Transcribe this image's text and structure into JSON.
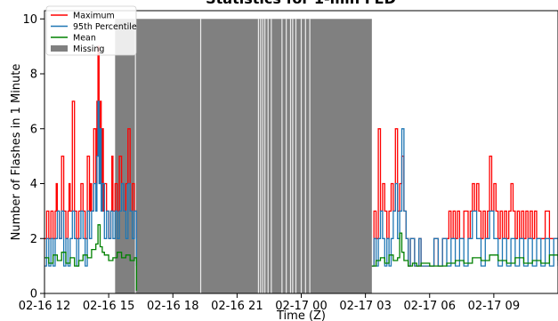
{
  "chart_data": {
    "type": "line",
    "title": "Statistics for 1-min FED",
    "xlabel": "Time (Z)",
    "ylabel": "Number of Flashes in 1 Minute",
    "ylim": [
      0,
      10.3
    ],
    "xlim_hours": [
      0,
      24
    ],
    "x_ticks": [
      {
        "hour": 0,
        "label": "02-16 12"
      },
      {
        "hour": 3,
        "label": "02-16 15"
      },
      {
        "hour": 6,
        "label": "02-16 18"
      },
      {
        "hour": 9,
        "label": "02-16 21"
      },
      {
        "hour": 12,
        "label": "02-17 00"
      },
      {
        "hour": 15,
        "label": "02-17 03"
      },
      {
        "hour": 18,
        "label": "02-17 06"
      },
      {
        "hour": 21,
        "label": "02-17 09"
      }
    ],
    "y_ticks": [
      0,
      2,
      4,
      6,
      8,
      10
    ],
    "legend_position": "top-left",
    "legend": [
      {
        "label": "Maximum",
        "color": "#ff0000",
        "kind": "line"
      },
      {
        "label": "95th Percentile",
        "color": "#1f77b4",
        "kind": "line"
      },
      {
        "label": "Mean",
        "color": "#008000",
        "kind": "line"
      },
      {
        "label": "Missing",
        "color": "#808080",
        "kind": "patch"
      }
    ],
    "missing_range_hours": [
      3.3,
      15.3
    ],
    "missing_value": 10,
    "missing_gap_hours": [
      4.25,
      7.3,
      10.0,
      10.1,
      10.2,
      10.3,
      10.45,
      10.6,
      11.1,
      11.3,
      11.5,
      11.6,
      11.75,
      12.0,
      12.2,
      12.4
    ],
    "series": [
      {
        "name": "Maximum",
        "color": "#ff0000",
        "points": [
          [
            0.0,
            2
          ],
          [
            0.1,
            3
          ],
          [
            0.2,
            2
          ],
          [
            0.3,
            3
          ],
          [
            0.4,
            2
          ],
          [
            0.5,
            3
          ],
          [
            0.55,
            4
          ],
          [
            0.6,
            3
          ],
          [
            0.7,
            2
          ],
          [
            0.8,
            5
          ],
          [
            0.9,
            3
          ],
          [
            1.0,
            2
          ],
          [
            1.1,
            3
          ],
          [
            1.15,
            4
          ],
          [
            1.2,
            3
          ],
          [
            1.3,
            7
          ],
          [
            1.4,
            3
          ],
          [
            1.5,
            2
          ],
          [
            1.6,
            3
          ],
          [
            1.7,
            4
          ],
          [
            1.8,
            3
          ],
          [
            1.9,
            2
          ],
          [
            2.0,
            5
          ],
          [
            2.1,
            3
          ],
          [
            2.15,
            4
          ],
          [
            2.2,
            3
          ],
          [
            2.3,
            6
          ],
          [
            2.4,
            4
          ],
          [
            2.45,
            7
          ],
          [
            2.5,
            9
          ],
          [
            2.55,
            5
          ],
          [
            2.6,
            7
          ],
          [
            2.65,
            4
          ],
          [
            2.7,
            6
          ],
          [
            2.75,
            3
          ],
          [
            2.8,
            4
          ],
          [
            2.9,
            3
          ],
          [
            3.0,
            2
          ],
          [
            3.1,
            3
          ],
          [
            3.15,
            5
          ],
          [
            3.2,
            3
          ],
          [
            3.3,
            4
          ],
          [
            3.4,
            3
          ],
          [
            3.5,
            5
          ],
          [
            3.6,
            4
          ],
          [
            3.7,
            3
          ],
          [
            3.8,
            4
          ],
          [
            3.9,
            6
          ],
          [
            4.0,
            3
          ],
          [
            4.1,
            4
          ],
          [
            4.2,
            3
          ],
          [
            4.3,
            2
          ],
          [
            15.3,
            1
          ],
          [
            15.4,
            3
          ],
          [
            15.5,
            2
          ],
          [
            15.6,
            6
          ],
          [
            15.7,
            3
          ],
          [
            15.8,
            4
          ],
          [
            15.9,
            3
          ],
          [
            16.0,
            2
          ],
          [
            16.1,
            3
          ],
          [
            16.2,
            4
          ],
          [
            16.3,
            3
          ],
          [
            16.4,
            6
          ],
          [
            16.5,
            3
          ],
          [
            16.6,
            4
          ],
          [
            16.7,
            5
          ],
          [
            16.8,
            3
          ],
          [
            16.9,
            2
          ],
          [
            17.0,
            1
          ],
          [
            17.1,
            2
          ],
          [
            17.3,
            1
          ],
          [
            17.5,
            2
          ],
          [
            17.6,
            1
          ],
          [
            18.0,
            1
          ],
          [
            18.2,
            2
          ],
          [
            18.4,
            1
          ],
          [
            18.6,
            2
          ],
          [
            18.8,
            2
          ],
          [
            18.9,
            3
          ],
          [
            19.0,
            2
          ],
          [
            19.1,
            3
          ],
          [
            19.2,
            2
          ],
          [
            19.3,
            3
          ],
          [
            19.4,
            2
          ],
          [
            19.6,
            3
          ],
          [
            19.8,
            2
          ],
          [
            19.9,
            3
          ],
          [
            20.0,
            4
          ],
          [
            20.1,
            3
          ],
          [
            20.2,
            4
          ],
          [
            20.3,
            3
          ],
          [
            20.4,
            2
          ],
          [
            20.5,
            3
          ],
          [
            20.6,
            2
          ],
          [
            20.7,
            3
          ],
          [
            20.8,
            5
          ],
          [
            20.9,
            3
          ],
          [
            21.0,
            4
          ],
          [
            21.1,
            3
          ],
          [
            21.2,
            2
          ],
          [
            21.3,
            3
          ],
          [
            21.4,
            2
          ],
          [
            21.5,
            3
          ],
          [
            21.6,
            2
          ],
          [
            21.7,
            3
          ],
          [
            21.8,
            4
          ],
          [
            21.9,
            3
          ],
          [
            22.0,
            2
          ],
          [
            22.1,
            3
          ],
          [
            22.2,
            2
          ],
          [
            22.3,
            3
          ],
          [
            22.4,
            2
          ],
          [
            22.5,
            3
          ],
          [
            22.6,
            2
          ],
          [
            22.7,
            3
          ],
          [
            22.8,
            2
          ],
          [
            22.9,
            3
          ],
          [
            23.0,
            2
          ],
          [
            23.2,
            2
          ],
          [
            23.4,
            3
          ],
          [
            23.6,
            2
          ],
          [
            23.8,
            2
          ],
          [
            24.0,
            2
          ]
        ]
      },
      {
        "name": "95th Percentile",
        "color": "#1f77b4",
        "points": [
          [
            0.0,
            1
          ],
          [
            0.1,
            2
          ],
          [
            0.2,
            1
          ],
          [
            0.3,
            2
          ],
          [
            0.4,
            1
          ],
          [
            0.5,
            2
          ],
          [
            0.6,
            3
          ],
          [
            0.7,
            2
          ],
          [
            0.8,
            3
          ],
          [
            0.9,
            1
          ],
          [
            1.0,
            2
          ],
          [
            1.1,
            1
          ],
          [
            1.2,
            2
          ],
          [
            1.3,
            3
          ],
          [
            1.4,
            2
          ],
          [
            1.5,
            1
          ],
          [
            1.6,
            2
          ],
          [
            1.7,
            3
          ],
          [
            1.8,
            2
          ],
          [
            1.9,
            1
          ],
          [
            2.0,
            3
          ],
          [
            2.1,
            2
          ],
          [
            2.2,
            3
          ],
          [
            2.3,
            4
          ],
          [
            2.4,
            3
          ],
          [
            2.45,
            5
          ],
          [
            2.5,
            7
          ],
          [
            2.55,
            4
          ],
          [
            2.6,
            6
          ],
          [
            2.65,
            3
          ],
          [
            2.7,
            4
          ],
          [
            2.8,
            2
          ],
          [
            2.9,
            3
          ],
          [
            3.0,
            2
          ],
          [
            3.1,
            3
          ],
          [
            3.2,
            2
          ],
          [
            3.3,
            3
          ],
          [
            3.4,
            2
          ],
          [
            3.5,
            3
          ],
          [
            3.6,
            4
          ],
          [
            3.7,
            3
          ],
          [
            3.8,
            2
          ],
          [
            3.9,
            4
          ],
          [
            4.0,
            3
          ],
          [
            4.1,
            2
          ],
          [
            4.2,
            3
          ],
          [
            4.3,
            1
          ],
          [
            15.3,
            1
          ],
          [
            15.4,
            2
          ],
          [
            15.5,
            1
          ],
          [
            15.6,
            2
          ],
          [
            15.7,
            3
          ],
          [
            15.8,
            2
          ],
          [
            15.9,
            1
          ],
          [
            16.0,
            2
          ],
          [
            16.1,
            1
          ],
          [
            16.2,
            2
          ],
          [
            16.3,
            3
          ],
          [
            16.4,
            4
          ],
          [
            16.5,
            2
          ],
          [
            16.6,
            3
          ],
          [
            16.7,
            6
          ],
          [
            16.8,
            3
          ],
          [
            16.9,
            2
          ],
          [
            17.0,
            1
          ],
          [
            17.1,
            2
          ],
          [
            17.3,
            1
          ],
          [
            17.5,
            2
          ],
          [
            17.6,
            1
          ],
          [
            18.0,
            1
          ],
          [
            18.2,
            2
          ],
          [
            18.4,
            1
          ],
          [
            18.6,
            2
          ],
          [
            18.8,
            1
          ],
          [
            19.0,
            2
          ],
          [
            19.2,
            1
          ],
          [
            19.4,
            2
          ],
          [
            19.6,
            1
          ],
          [
            19.8,
            2
          ],
          [
            20.0,
            3
          ],
          [
            20.2,
            2
          ],
          [
            20.4,
            1
          ],
          [
            20.6,
            2
          ],
          [
            20.8,
            3
          ],
          [
            21.0,
            2
          ],
          [
            21.2,
            1
          ],
          [
            21.4,
            2
          ],
          [
            21.6,
            1
          ],
          [
            21.8,
            2
          ],
          [
            22.0,
            1
          ],
          [
            22.2,
            2
          ],
          [
            22.4,
            1
          ],
          [
            22.6,
            2
          ],
          [
            22.8,
            1
          ],
          [
            23.0,
            2
          ],
          [
            23.2,
            1
          ],
          [
            23.4,
            2
          ],
          [
            23.6,
            1
          ],
          [
            23.8,
            2
          ],
          [
            24.0,
            1
          ]
        ]
      },
      {
        "name": "Mean",
        "color": "#008000",
        "points": [
          [
            0.0,
            1.3
          ],
          [
            0.2,
            1.1
          ],
          [
            0.4,
            1.4
          ],
          [
            0.6,
            1.2
          ],
          [
            0.8,
            1.5
          ],
          [
            1.0,
            1.1
          ],
          [
            1.2,
            1.3
          ],
          [
            1.4,
            1.0
          ],
          [
            1.6,
            1.2
          ],
          [
            1.8,
            1.4
          ],
          [
            2.0,
            1.3
          ],
          [
            2.2,
            1.6
          ],
          [
            2.4,
            1.8
          ],
          [
            2.5,
            2.5
          ],
          [
            2.6,
            1.7
          ],
          [
            2.7,
            1.5
          ],
          [
            2.8,
            1.4
          ],
          [
            3.0,
            1.2
          ],
          [
            3.2,
            1.3
          ],
          [
            3.4,
            1.5
          ],
          [
            3.6,
            1.3
          ],
          [
            3.8,
            1.4
          ],
          [
            4.0,
            1.2
          ],
          [
            4.2,
            1.3
          ],
          [
            4.3,
            0.1
          ],
          [
            15.3,
            1.0
          ],
          [
            15.5,
            1.2
          ],
          [
            15.7,
            1.3
          ],
          [
            15.9,
            1.1
          ],
          [
            16.1,
            1.4
          ],
          [
            16.3,
            1.2
          ],
          [
            16.5,
            1.3
          ],
          [
            16.6,
            2.2
          ],
          [
            16.7,
            1.5
          ],
          [
            16.8,
            1.2
          ],
          [
            17.0,
            1.0
          ],
          [
            17.2,
            1.1
          ],
          [
            17.4,
            1.0
          ],
          [
            17.6,
            1.1
          ],
          [
            18.0,
            1.0
          ],
          [
            18.4,
            1.0
          ],
          [
            18.8,
            1.1
          ],
          [
            19.2,
            1.2
          ],
          [
            19.6,
            1.1
          ],
          [
            20.0,
            1.3
          ],
          [
            20.4,
            1.2
          ],
          [
            20.8,
            1.4
          ],
          [
            21.2,
            1.2
          ],
          [
            21.6,
            1.1
          ],
          [
            22.0,
            1.3
          ],
          [
            22.4,
            1.1
          ],
          [
            22.8,
            1.2
          ],
          [
            23.2,
            1.1
          ],
          [
            23.6,
            1.4
          ],
          [
            24.0,
            1.2
          ]
        ]
      }
    ]
  }
}
